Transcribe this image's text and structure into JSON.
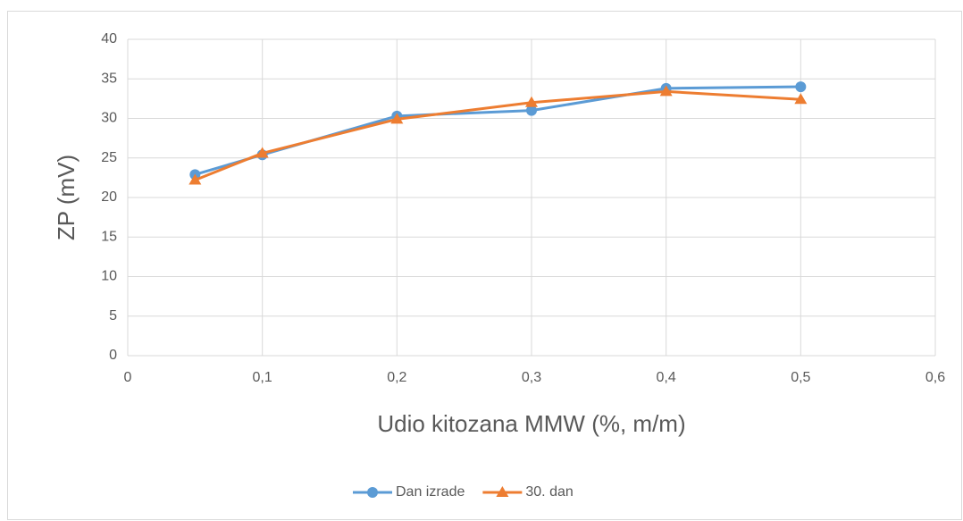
{
  "chart_data": {
    "type": "line",
    "x_label": "Udio kitozana MMW (%, m/m)",
    "y_label": "ZP (mV)",
    "x": [
      0.05,
      0.1,
      0.2,
      0.3,
      0.4,
      0.5
    ],
    "series": [
      {
        "name": "Dan izrade",
        "color": "#5b9bd5",
        "marker": "circle",
        "values": [
          22.9,
          25.4,
          30.3,
          31.0,
          33.8,
          34.0
        ]
      },
      {
        "name": "30. dan",
        "color": "#ed7d31",
        "marker": "triangle",
        "values": [
          22.2,
          25.6,
          29.9,
          32.0,
          33.4,
          32.4
        ]
      }
    ],
    "xlim": [
      0,
      0.6
    ],
    "xticks": [
      0,
      {
        "value": 0.1,
        "label": "0,1"
      },
      {
        "value": 0.2,
        "label": "0,2"
      },
      {
        "value": 0.3,
        "label": "0,3"
      },
      {
        "value": 0.4,
        "label": "0,4"
      },
      {
        "value": 0.5,
        "label": "0,5"
      },
      {
        "value": 0.6,
        "label": "0,6"
      }
    ],
    "ylim": [
      0,
      40
    ],
    "yticks": [
      0,
      5,
      10,
      15,
      20,
      25,
      30,
      35,
      40
    ],
    "grid": true,
    "legend": "bottom"
  }
}
